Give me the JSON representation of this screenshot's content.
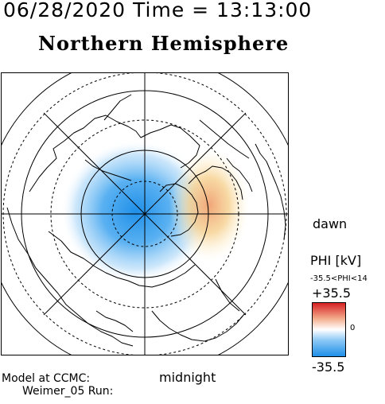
{
  "header": {
    "timestamp": "06/28/2020 Time = 13:13:00",
    "hemisphere": "Northern Hemisphere"
  },
  "map": {
    "dawn_label": "dawn",
    "midnight_label": "midnight",
    "colors": {
      "positive": "#d62020",
      "negative": "#1f8fe8",
      "neutral": "#ffffff"
    }
  },
  "legend": {
    "title": "PHI [kV]",
    "range_text": "-35.5<PHI<14",
    "max_label": "+35.5",
    "zero_label": "0",
    "min_label": "-35.5"
  },
  "footer": {
    "model_label": "Model at CCMC:",
    "run_label": "Weimer_05 Run:"
  }
}
